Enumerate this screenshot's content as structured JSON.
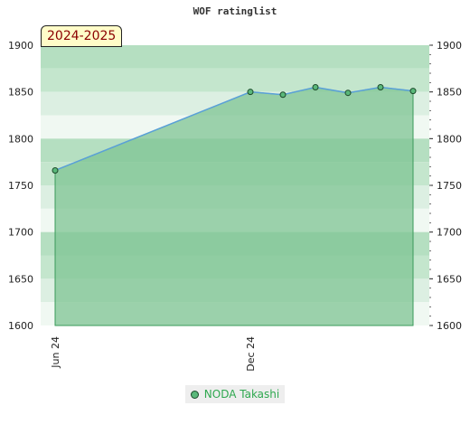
{
  "chart_data": {
    "type": "area",
    "title": "WOF ratinglist",
    "season_label": "2024-2025",
    "x_tick_labels": [
      "Jun 24",
      "Dec 24"
    ],
    "y_ticks": [
      1600,
      1650,
      1700,
      1750,
      1800,
      1850,
      1900
    ],
    "ylim": [
      1600,
      1900
    ],
    "series": [
      {
        "name": "NODA Takashi",
        "color": "#5aa0d8",
        "fill": "#7fc493",
        "points": [
          {
            "x": "2024-06",
            "y": 1766
          },
          {
            "x": "2024-12",
            "y": 1850
          },
          {
            "x": "2025-01",
            "y": 1847
          },
          {
            "x": "2025-02",
            "y": 1855
          },
          {
            "x": "2025-03",
            "y": 1849
          },
          {
            "x": "2025-04",
            "y": 1855
          },
          {
            "x": "2025-05",
            "y": 1851
          }
        ]
      }
    ],
    "legend_position": "bottom-center"
  }
}
